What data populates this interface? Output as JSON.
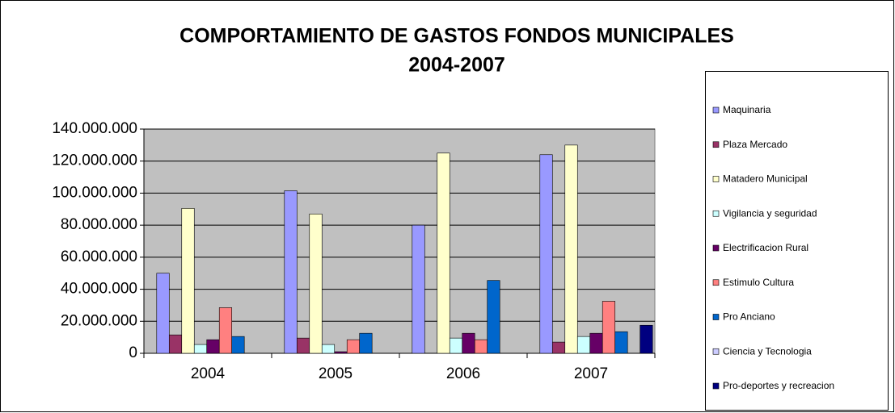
{
  "chart_data": {
    "type": "bar",
    "title": [
      "COMPORTAMIENTO DE GASTOS  FONDOS MUNICIPALES",
      "2004-2007"
    ],
    "categories": [
      "2004",
      "2005",
      "2006",
      "2007"
    ],
    "series": [
      {
        "name": "Maquinaria",
        "color": "#9999ff",
        "values": [
          50000000,
          101500000,
          80000000,
          124000000
        ]
      },
      {
        "name": "Plaza Mercado",
        "color": "#993366",
        "values": [
          11500000,
          9500000,
          0,
          7000000
        ]
      },
      {
        "name": "Matadero Municipal",
        "color": "#ffffcc",
        "values": [
          90500000,
          87000000,
          125000000,
          130000000
        ]
      },
      {
        "name": "Vigilancia y seguridad",
        "color": "#ccffff",
        "values": [
          5500000,
          5500000,
          9500000,
          10500000
        ]
      },
      {
        "name": "Electrificacion Rural",
        "color": "#660066",
        "values": [
          8500000,
          1000000,
          12500000,
          12500000
        ]
      },
      {
        "name": "Estimulo Cultura",
        "color": "#ff8080",
        "values": [
          28500000,
          8500000,
          8500000,
          32500000
        ]
      },
      {
        "name": "Pro Anciano",
        "color": "#0066cc",
        "values": [
          10500000,
          12500000,
          45500000,
          13500000
        ]
      },
      {
        "name": "Ciencia y Tecnologia",
        "color": "#ccccff",
        "values": [
          0,
          0,
          0,
          0
        ]
      },
      {
        "name": "Pro-deportes y recreacion",
        "color": "#000080",
        "values": [
          0,
          0,
          0,
          17500000
        ]
      }
    ],
    "ylim": [
      0,
      140000000
    ],
    "yticks": [
      0,
      {
        "value": 20000000,
        "label": "20.000.000"
      },
      {
        "value": 40000000,
        "label": "40.000.000"
      },
      {
        "value": 60000000,
        "label": "60.000.000"
      },
      {
        "value": 80000000,
        "label": "80.000.000"
      },
      {
        "value": 100000000,
        "label": "100.000.000"
      },
      {
        "value": 120000000,
        "label": "120.000.000"
      },
      {
        "value": 140000000,
        "label": "140.000.000"
      }
    ],
    "grid": true,
    "legend": "right"
  }
}
